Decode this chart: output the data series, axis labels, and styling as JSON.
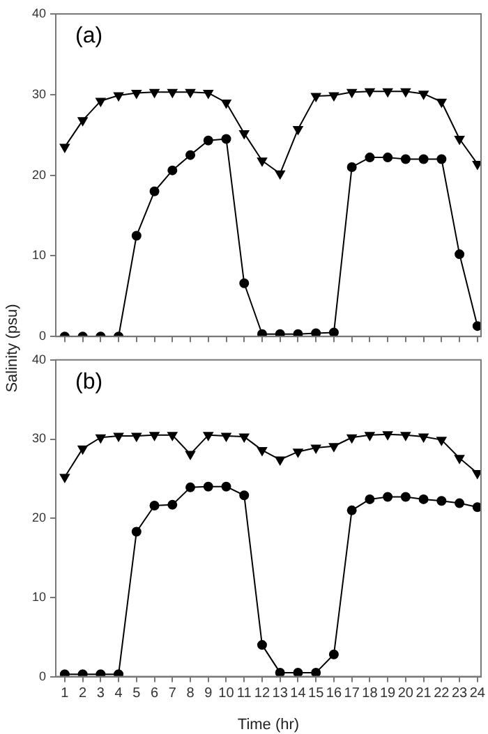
{
  "chart_data": [
    {
      "type": "line",
      "ylabel": "Salinity (psu)",
      "annotations": [
        "(a)"
      ],
      "xlim": [
        0.5,
        24.2
      ],
      "xticks": [
        1,
        2,
        3,
        4,
        5,
        6,
        7,
        8,
        9,
        10,
        11,
        12,
        13,
        14,
        15,
        16,
        17,
        18,
        19,
        20,
        21,
        22,
        23,
        24
      ],
      "ylim": [
        0,
        40
      ],
      "yticks": [
        0,
        10,
        20,
        30,
        40
      ],
      "tick_labels": "y",
      "grid": false,
      "legend": false,
      "x": [
        1,
        2,
        3,
        4,
        5,
        6,
        7,
        8,
        9,
        10,
        11,
        12,
        13,
        14,
        15,
        16,
        17,
        18,
        19,
        20,
        21,
        22,
        23,
        24
      ],
      "series": [
        {
          "color": "#000000",
          "marker": "triangle",
          "values": [
            23.5,
            26.8,
            29.2,
            29.9,
            30.2,
            30.3,
            30.3,
            30.3,
            30.2,
            29.0,
            25.2,
            21.8,
            20.2,
            25.7,
            29.8,
            29.9,
            30.3,
            30.4,
            30.4,
            30.4,
            30.1,
            29.1,
            24.5,
            21.4
          ]
        },
        {
          "color": "#000000",
          "marker": "circle",
          "values": [
            0,
            0,
            0,
            0,
            12.5,
            18,
            20.6,
            22.5,
            24.3,
            24.5,
            6.6,
            0.3,
            0.3,
            0.3,
            0.4,
            0.5,
            21,
            22.2,
            22.2,
            22,
            22,
            22,
            10.2,
            1.3
          ]
        }
      ]
    },
    {
      "type": "line",
      "xlabel": "Time (hr)",
      "annotations": [
        "(b)"
      ],
      "xlim": [
        0.5,
        24.2
      ],
      "xticks": [
        1,
        2,
        3,
        4,
        5,
        6,
        7,
        8,
        9,
        10,
        11,
        12,
        13,
        14,
        15,
        16,
        17,
        18,
        19,
        20,
        21,
        22,
        23,
        24
      ],
      "ylim": [
        0,
        40
      ],
      "yticks": [
        0,
        10,
        20,
        30,
        40
      ],
      "grid": false,
      "legend": false,
      "x": [
        1,
        2,
        3,
        4,
        5,
        6,
        7,
        8,
        9,
        10,
        11,
        12,
        13,
        14,
        15,
        16,
        17,
        18,
        19,
        20,
        21,
        22,
        23,
        24
      ],
      "series": [
        {
          "color": "#000000",
          "marker": "triangle",
          "values": [
            25.2,
            28.8,
            30.2,
            30.4,
            30.4,
            30.5,
            30.5,
            28.1,
            30.5,
            30.4,
            30.3,
            28.6,
            27.4,
            28.4,
            28.9,
            29.1,
            30.2,
            30.5,
            30.6,
            30.5,
            30.3,
            29.9,
            27.6,
            25.7
          ]
        },
        {
          "color": "#000000",
          "marker": "circle",
          "values": [
            0.3,
            0.3,
            0.3,
            0.3,
            18.3,
            21.6,
            21.7,
            23.9,
            24.0,
            24.0,
            22.9,
            4.0,
            0.5,
            0.5,
            0.5,
            2.8,
            21.0,
            22.4,
            22.7,
            22.7,
            22.4,
            22.2,
            21.9,
            21.4
          ]
        }
      ]
    }
  ]
}
